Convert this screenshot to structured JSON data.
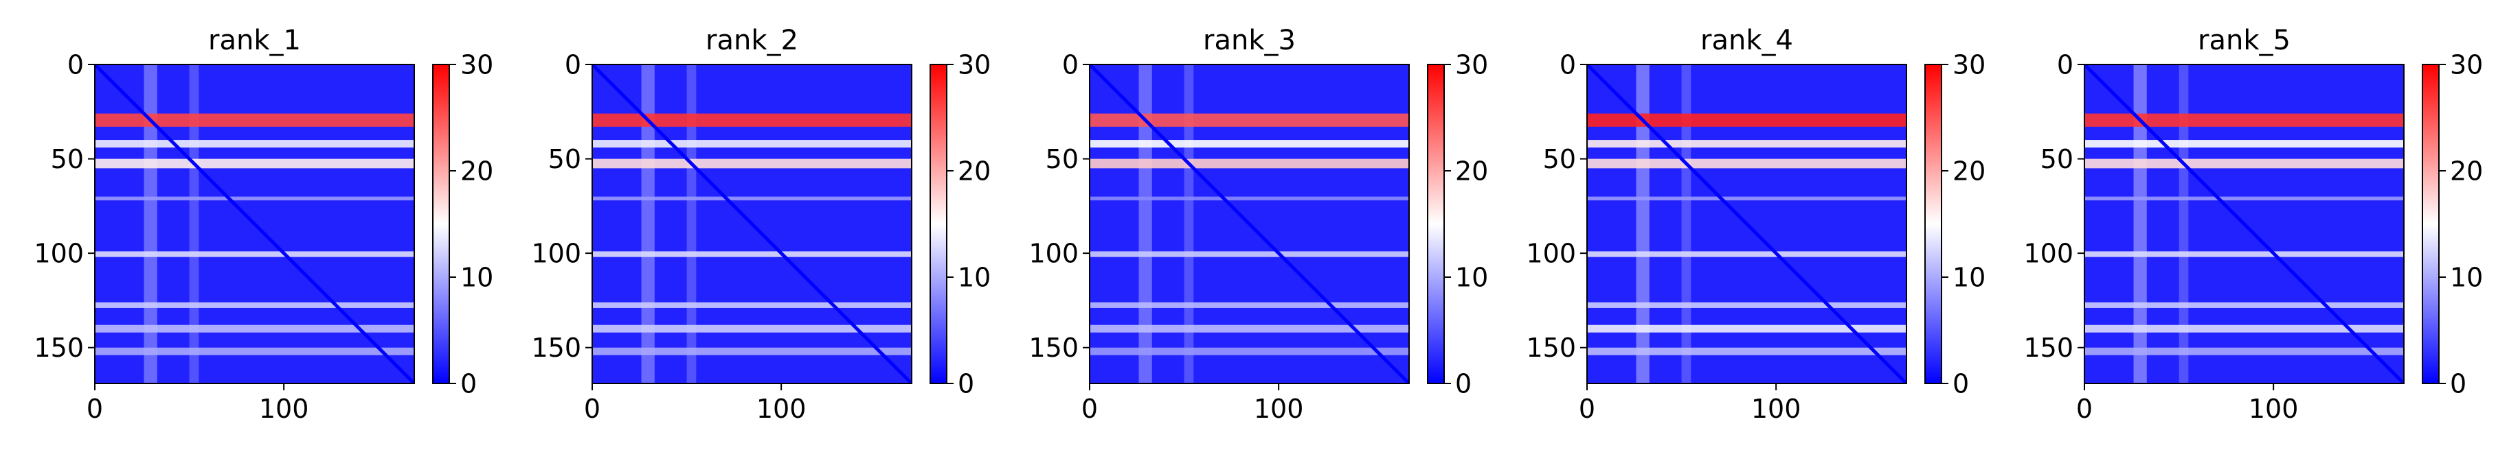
{
  "chart_data": [
    {
      "type": "heatmap",
      "title": "rank_1",
      "x_range": [
        0,
        169
      ],
      "y_range": [
        0,
        169
      ],
      "x_ticks": [
        "0",
        "100"
      ],
      "y_ticks": [
        "0",
        "50",
        "100",
        "150"
      ],
      "colorbar": {
        "range": [
          0,
          30
        ],
        "ticks": [
          "0",
          "10",
          "20",
          "30"
        ],
        "colormap": "bwr"
      },
      "background_value": 2,
      "diagonal_value": 0,
      "bands": [
        {
          "rows": [
            26,
            33
          ],
          "value": 26
        },
        {
          "rows": [
            40,
            44
          ],
          "value": 14
        },
        {
          "rows": [
            50,
            55
          ],
          "value": 16
        },
        {
          "rows": [
            70,
            72
          ],
          "value": 9
        },
        {
          "rows": [
            99,
            102
          ],
          "value": 13
        },
        {
          "rows": [
            126,
            129
          ],
          "value": 12
        },
        {
          "rows": [
            138,
            142
          ],
          "value": 11
        },
        {
          "rows": [
            150,
            154
          ],
          "value": 10
        }
      ],
      "columns": [
        {
          "cols": [
            26,
            33
          ],
          "value": 8
        },
        {
          "cols": [
            50,
            55
          ],
          "value": 6
        }
      ]
    },
    {
      "type": "heatmap",
      "title": "rank_2",
      "x_range": [
        0,
        169
      ],
      "y_range": [
        0,
        169
      ],
      "x_ticks": [
        "0",
        "100"
      ],
      "y_ticks": [
        "0",
        "50",
        "100",
        "150"
      ],
      "colorbar": {
        "range": [
          0,
          30
        ],
        "ticks": [
          "0",
          "10",
          "20",
          "30"
        ],
        "colormap": "bwr"
      },
      "background_value": 2,
      "diagonal_value": 0,
      "bands": [
        {
          "rows": [
            26,
            33
          ],
          "value": 27
        },
        {
          "rows": [
            40,
            44
          ],
          "value": 14
        },
        {
          "rows": [
            50,
            55
          ],
          "value": 17
        },
        {
          "rows": [
            70,
            72
          ],
          "value": 9
        },
        {
          "rows": [
            99,
            102
          ],
          "value": 13
        },
        {
          "rows": [
            126,
            129
          ],
          "value": 12
        },
        {
          "rows": [
            138,
            142
          ],
          "value": 12
        },
        {
          "rows": [
            150,
            154
          ],
          "value": 10
        }
      ],
      "columns": [
        {
          "cols": [
            26,
            33
          ],
          "value": 8
        },
        {
          "cols": [
            50,
            55
          ],
          "value": 6
        }
      ]
    },
    {
      "type": "heatmap",
      "title": "rank_3",
      "x_range": [
        0,
        169
      ],
      "y_range": [
        0,
        169
      ],
      "x_ticks": [
        "0",
        "100"
      ],
      "y_ticks": [
        "0",
        "50",
        "100",
        "150"
      ],
      "colorbar": {
        "range": [
          0,
          30
        ],
        "ticks": [
          "0",
          "10",
          "20",
          "30"
        ],
        "colormap": "bwr"
      },
      "background_value": 2,
      "diagonal_value": 0,
      "bands": [
        {
          "rows": [
            26,
            33
          ],
          "value": 25
        },
        {
          "rows": [
            40,
            44
          ],
          "value": 15
        },
        {
          "rows": [
            50,
            55
          ],
          "value": 18
        },
        {
          "rows": [
            70,
            72
          ],
          "value": 8
        },
        {
          "rows": [
            99,
            102
          ],
          "value": 12
        },
        {
          "rows": [
            126,
            129
          ],
          "value": 11
        },
        {
          "rows": [
            138,
            142
          ],
          "value": 11
        },
        {
          "rows": [
            150,
            154
          ],
          "value": 9
        }
      ],
      "columns": [
        {
          "cols": [
            26,
            33
          ],
          "value": 8
        },
        {
          "cols": [
            50,
            55
          ],
          "value": 6
        }
      ]
    },
    {
      "type": "heatmap",
      "title": "rank_4",
      "x_range": [
        0,
        169
      ],
      "y_range": [
        0,
        169
      ],
      "x_ticks": [
        "0",
        "100"
      ],
      "y_ticks": [
        "0",
        "50",
        "100",
        "150"
      ],
      "colorbar": {
        "range": [
          0,
          30
        ],
        "ticks": [
          "0",
          "10",
          "20",
          "30"
        ],
        "colormap": "bwr"
      },
      "background_value": 2,
      "diagonal_value": 0,
      "bands": [
        {
          "rows": [
            26,
            33
          ],
          "value": 28
        },
        {
          "rows": [
            40,
            44
          ],
          "value": 16
        },
        {
          "rows": [
            50,
            55
          ],
          "value": 17
        },
        {
          "rows": [
            70,
            72
          ],
          "value": 9
        },
        {
          "rows": [
            99,
            102
          ],
          "value": 13
        },
        {
          "rows": [
            126,
            129
          ],
          "value": 12
        },
        {
          "rows": [
            138,
            142
          ],
          "value": 14
        },
        {
          "rows": [
            150,
            154
          ],
          "value": 11
        }
      ],
      "columns": [
        {
          "cols": [
            26,
            33
          ],
          "value": 9
        },
        {
          "cols": [
            50,
            55
          ],
          "value": 6
        }
      ]
    },
    {
      "type": "heatmap",
      "title": "rank_5",
      "x_range": [
        0,
        169
      ],
      "y_range": [
        0,
        169
      ],
      "x_ticks": [
        "0",
        "100"
      ],
      "y_ticks": [
        "0",
        "50",
        "100",
        "150"
      ],
      "colorbar": {
        "range": [
          0,
          30
        ],
        "ticks": [
          "0",
          "10",
          "20",
          "30"
        ],
        "colormap": "bwr"
      },
      "background_value": 2,
      "diagonal_value": 0,
      "bands": [
        {
          "rows": [
            26,
            33
          ],
          "value": 27
        },
        {
          "rows": [
            40,
            44
          ],
          "value": 15
        },
        {
          "rows": [
            50,
            55
          ],
          "value": 17
        },
        {
          "rows": [
            70,
            72
          ],
          "value": 9
        },
        {
          "rows": [
            99,
            102
          ],
          "value": 13
        },
        {
          "rows": [
            126,
            129
          ],
          "value": 12
        },
        {
          "rows": [
            138,
            142
          ],
          "value": 13
        },
        {
          "rows": [
            150,
            154
          ],
          "value": 10
        }
      ],
      "columns": [
        {
          "cols": [
            26,
            33
          ],
          "value": 9
        },
        {
          "cols": [
            50,
            55
          ],
          "value": 6
        }
      ]
    }
  ]
}
